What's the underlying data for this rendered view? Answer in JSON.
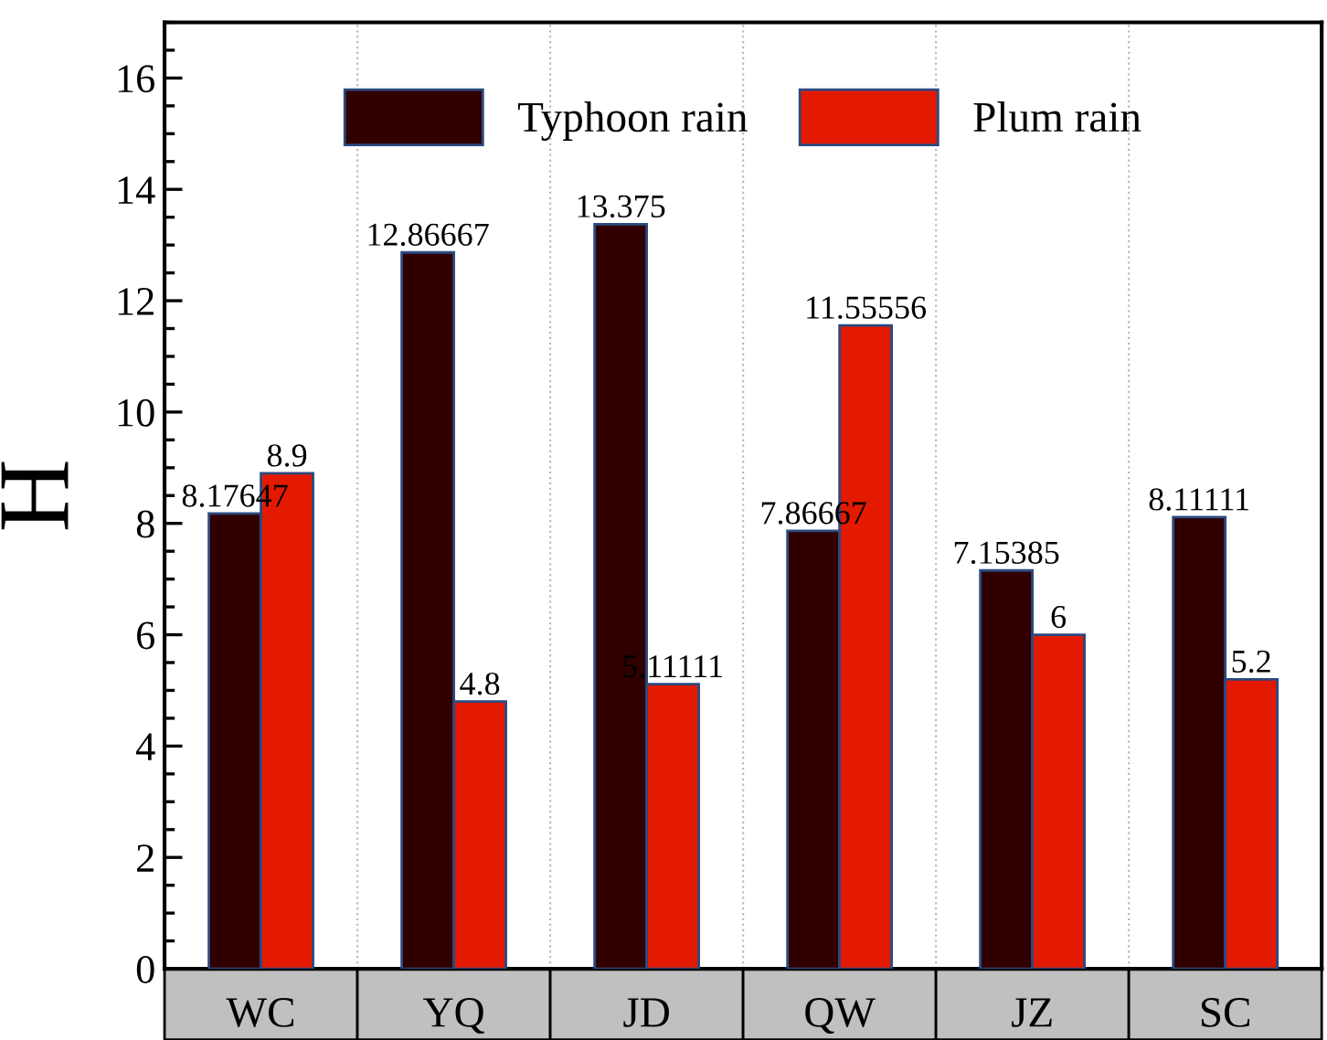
{
  "chart_data": {
    "type": "bar",
    "ylabel": "H",
    "categories": [
      "WC",
      "YQ",
      "JD",
      "QW",
      "JZ",
      "SC"
    ],
    "series": [
      {
        "name": "Typhoon rain",
        "color": "#300000",
        "values": [
          8.17647,
          12.86667,
          13.375,
          7.86667,
          7.15385,
          8.11111
        ]
      },
      {
        "name": "Plum rain",
        "color": "#e31a00",
        "values": [
          8.9,
          4.8,
          5.11111,
          11.55556,
          6,
          5.2
        ]
      }
    ],
    "ylim": [
      0,
      17
    ],
    "yticks": [
      0,
      2,
      4,
      6,
      8,
      10,
      12,
      14,
      16
    ],
    "grid": "x",
    "legend": "top",
    "data_labels": true
  }
}
